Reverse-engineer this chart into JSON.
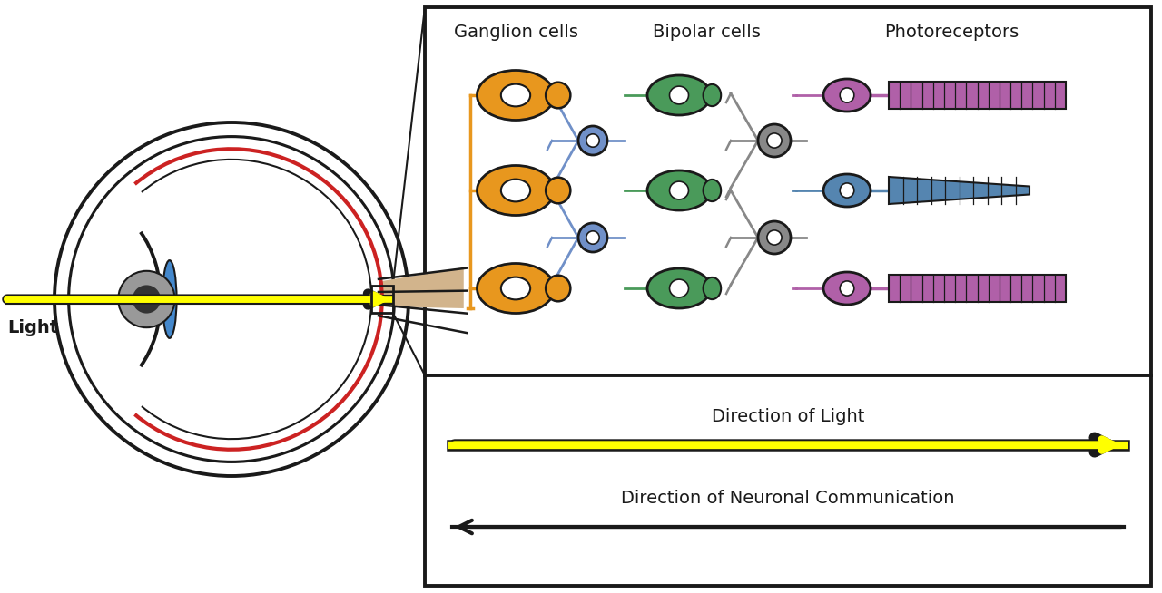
{
  "bg_color": "#ffffff",
  "color_outline": "#1a1a1a",
  "color_ganglion": "#E8971E",
  "color_bipolar_blue": "#7090C8",
  "color_bipolar_green": "#4A9A5A",
  "color_bipolar_gray": "#888888",
  "color_photo_purple": "#B060A8",
  "color_photo_blue": "#5585B0",
  "color_retina": "#CC2222",
  "color_lens": "#4488CC",
  "color_optic_nerve": "#D2B48C",
  "color_yellow": "#FFFF00",
  "label_ganglion": "Ganglion cells",
  "label_bipolar": "Bipolar cells",
  "label_photoreceptor": "Photoreceptors",
  "label_light_dir": "Direction of Light",
  "label_neural_dir": "Direction of Neuronal Communication",
  "label_light": "Light"
}
